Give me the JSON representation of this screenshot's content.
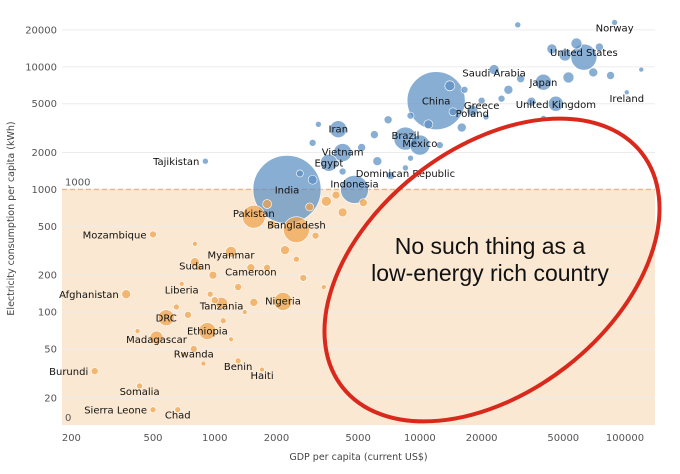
{
  "chart_data": {
    "type": "scatter",
    "xlabel": "GDP per capita (current US$)",
    "ylabel": "Electricity consumption per capita (kWh)",
    "x_scale": "log",
    "y_scale": "log",
    "xlim": [
      180,
      140000
    ],
    "ylim": [
      12,
      28000
    ],
    "x_ticks": [
      200,
      500,
      1000,
      2000,
      5000,
      10000,
      20000,
      50000,
      100000
    ],
    "x_tick_labels": [
      "200",
      "500",
      "1000",
      "2000",
      "5000",
      "10000",
      "20000",
      "50000",
      "100000"
    ],
    "y_ticks": [
      20,
      50,
      100,
      200,
      500,
      1000,
      2000,
      5000,
      10000,
      20000
    ],
    "y_tick_labels": [
      "20",
      "50",
      "100",
      "200",
      "500",
      "1000",
      "2000",
      "5000",
      "10000",
      "20000"
    ],
    "threshold": {
      "value": 1000,
      "label": "1000"
    },
    "shaded_region_label": "0",
    "colors": {
      "high": "#5b8fc4",
      "low": "#f0a24a",
      "shade": "#fbe8d2",
      "threshold_line": "#e8b48a",
      "ellipse": "#d9291c"
    },
    "annotation": {
      "line1": "No such thing as a",
      "line2": "low-energy rich country"
    },
    "points": [
      {
        "label": "Norway",
        "x": 89000,
        "y": 23000,
        "size": 6,
        "group": "high"
      },
      {
        "label": "Saudi Arabia",
        "x": 23000,
        "y": 9500,
        "size": 10,
        "group": "high"
      },
      {
        "label": "United States",
        "x": 63000,
        "y": 12000,
        "size": 26,
        "group": "high"
      },
      {
        "label": "Japan",
        "x": 40000,
        "y": 7500,
        "size": 16,
        "group": "high"
      },
      {
        "label": "Ireland",
        "x": 102000,
        "y": 6200,
        "size": 5,
        "group": "high"
      },
      {
        "label": "China",
        "x": 12000,
        "y": 5300,
        "size": 58,
        "group": "high"
      },
      {
        "label": "Greece",
        "x": 20000,
        "y": 5300,
        "size": 7,
        "group": "high"
      },
      {
        "label": "Poland",
        "x": 18000,
        "y": 4400,
        "size": 11,
        "group": "high"
      },
      {
        "label": "United Kingdom",
        "x": 46000,
        "y": 5000,
        "size": 15,
        "group": "high"
      },
      {
        "label": "Iran",
        "x": 4000,
        "y": 3100,
        "size": 17,
        "group": "high"
      },
      {
        "label": "Brazil",
        "x": 8500,
        "y": 2600,
        "size": 23,
        "group": "high"
      },
      {
        "label": "Mexico",
        "x": 10000,
        "y": 2300,
        "size": 20,
        "group": "high"
      },
      {
        "label": "Vietnam",
        "x": 4200,
        "y": 2000,
        "size": 18,
        "group": "high"
      },
      {
        "label": "Tajikistan",
        "x": 900,
        "y": 1700,
        "size": 6,
        "group": "high"
      },
      {
        "label": "Egypt",
        "x": 3600,
        "y": 1650,
        "size": 17,
        "group": "high"
      },
      {
        "label": "Dominican Republic",
        "x": 8500,
        "y": 1500,
        "size": 6,
        "group": "high"
      },
      {
        "label": "India",
        "x": 2250,
        "y": 1000,
        "size": 68,
        "group": "high"
      },
      {
        "label": "Indonesia",
        "x": 4800,
        "y": 1000,
        "size": 28,
        "group": "high"
      },
      {
        "label": "Pakistan",
        "x": 1550,
        "y": 600,
        "size": 23,
        "group": "low"
      },
      {
        "label": "Bangladesh",
        "x": 2500,
        "y": 470,
        "size": 26,
        "group": "low"
      },
      {
        "label": "Mozambique",
        "x": 500,
        "y": 430,
        "size": 7,
        "group": "low"
      },
      {
        "label": "Myanmar",
        "x": 1200,
        "y": 310,
        "size": 11,
        "group": "low"
      },
      {
        "label": "Sudan",
        "x": 800,
        "y": 255,
        "size": 9,
        "group": "low"
      },
      {
        "label": "Cameroon",
        "x": 1500,
        "y": 230,
        "size": 8,
        "group": "low"
      },
      {
        "label": "Liberia",
        "x": 690,
        "y": 170,
        "size": 5,
        "group": "low"
      },
      {
        "label": "Afghanistan",
        "x": 370,
        "y": 140,
        "size": 9,
        "group": "low"
      },
      {
        "label": "Tanzania",
        "x": 1080,
        "y": 118,
        "size": 12,
        "group": "low"
      },
      {
        "label": "Nigeria",
        "x": 2150,
        "y": 122,
        "size": 18,
        "group": "low"
      },
      {
        "label": "DRC",
        "x": 580,
        "y": 90,
        "size": 16,
        "group": "low"
      },
      {
        "label": "Ethiopia",
        "x": 920,
        "y": 70,
        "size": 17,
        "group": "low"
      },
      {
        "label": "Madagascar",
        "x": 520,
        "y": 62,
        "size": 13,
        "group": "low"
      },
      {
        "label": "Rwanda",
        "x": 790,
        "y": 50,
        "size": 7,
        "group": "low"
      },
      {
        "label": "Benin",
        "x": 1300,
        "y": 40,
        "size": 6,
        "group": "low"
      },
      {
        "label": "Haiti",
        "x": 1700,
        "y": 34,
        "size": 5,
        "group": "low"
      },
      {
        "label": "Burundi",
        "x": 260,
        "y": 33,
        "size": 7,
        "group": "low"
      },
      {
        "label": "Somalia",
        "x": 430,
        "y": 25,
        "size": 6,
        "group": "low"
      },
      {
        "label": "Sierra Leone",
        "x": 500,
        "y": 16,
        "size": 6,
        "group": "low"
      },
      {
        "label": "Chad",
        "x": 660,
        "y": 16,
        "size": 6,
        "group": "low"
      },
      {
        "label": "",
        "x": 14000,
        "y": 7000,
        "size": 10,
        "group": "high"
      },
      {
        "label": "",
        "x": 16000,
        "y": 3200,
        "size": 9,
        "group": "high"
      },
      {
        "label": "",
        "x": 27000,
        "y": 6500,
        "size": 9,
        "group": "high"
      },
      {
        "label": "",
        "x": 31000,
        "y": 8000,
        "size": 8,
        "group": "high"
      },
      {
        "label": "",
        "x": 35000,
        "y": 5200,
        "size": 9,
        "group": "high"
      },
      {
        "label": "",
        "x": 44000,
        "y": 14000,
        "size": 10,
        "group": "high"
      },
      {
        "label": "",
        "x": 51000,
        "y": 12500,
        "size": 12,
        "group": "high"
      },
      {
        "label": "",
        "x": 53000,
        "y": 8200,
        "size": 11,
        "group": "high"
      },
      {
        "label": "",
        "x": 58000,
        "y": 15500,
        "size": 11,
        "group": "high"
      },
      {
        "label": "",
        "x": 70000,
        "y": 9000,
        "size": 9,
        "group": "high"
      },
      {
        "label": "",
        "x": 75000,
        "y": 14500,
        "size": 8,
        "group": "high"
      },
      {
        "label": "",
        "x": 85000,
        "y": 8500,
        "size": 8,
        "group": "high"
      },
      {
        "label": "",
        "x": 120000,
        "y": 9500,
        "size": 5,
        "group": "high"
      },
      {
        "label": "",
        "x": 30000,
        "y": 22000,
        "size": 6,
        "group": "high"
      },
      {
        "label": "",
        "x": 25000,
        "y": 5500,
        "size": 7,
        "group": "high"
      },
      {
        "label": "",
        "x": 14500,
        "y": 4300,
        "size": 8,
        "group": "high"
      },
      {
        "label": "",
        "x": 11000,
        "y": 3400,
        "size": 9,
        "group": "high"
      },
      {
        "label": "",
        "x": 7000,
        "y": 3700,
        "size": 8,
        "group": "high"
      },
      {
        "label": "",
        "x": 6000,
        "y": 2800,
        "size": 8,
        "group": "high"
      },
      {
        "label": "",
        "x": 9000,
        "y": 4000,
        "size": 7,
        "group": "high"
      },
      {
        "label": "",
        "x": 12500,
        "y": 2300,
        "size": 7,
        "group": "high"
      },
      {
        "label": "",
        "x": 3200,
        "y": 3400,
        "size": 6,
        "group": "high"
      },
      {
        "label": "",
        "x": 3000,
        "y": 2400,
        "size": 7,
        "group": "high"
      },
      {
        "label": "",
        "x": 5200,
        "y": 2200,
        "size": 8,
        "group": "high"
      },
      {
        "label": "",
        "x": 6200,
        "y": 1700,
        "size": 9,
        "group": "high"
      },
      {
        "label": "",
        "x": 7200,
        "y": 1300,
        "size": 8,
        "group": "high"
      },
      {
        "label": "",
        "x": 4200,
        "y": 1400,
        "size": 7,
        "group": "high"
      },
      {
        "label": "",
        "x": 3000,
        "y": 1200,
        "size": 9,
        "group": "high"
      },
      {
        "label": "",
        "x": 2600,
        "y": 1350,
        "size": 7,
        "group": "high"
      },
      {
        "label": "",
        "x": 9000,
        "y": 1800,
        "size": 6,
        "group": "high"
      },
      {
        "label": "",
        "x": 40000,
        "y": 3800,
        "size": 6,
        "group": "high"
      },
      {
        "label": "",
        "x": 16500,
        "y": 6500,
        "size": 7,
        "group": "high"
      },
      {
        "label": "",
        "x": 21000,
        "y": 3900,
        "size": 6,
        "group": "high"
      },
      {
        "label": "",
        "x": 3500,
        "y": 800,
        "size": 10,
        "group": "low"
      },
      {
        "label": "",
        "x": 4200,
        "y": 650,
        "size": 9,
        "group": "low"
      },
      {
        "label": "",
        "x": 3900,
        "y": 900,
        "size": 8,
        "group": "low"
      },
      {
        "label": "",
        "x": 5300,
        "y": 780,
        "size": 8,
        "group": "low"
      },
      {
        "label": "",
        "x": 2900,
        "y": 720,
        "size": 8,
        "group": "low"
      },
      {
        "label": "",
        "x": 1800,
        "y": 760,
        "size": 9,
        "group": "low"
      },
      {
        "label": "",
        "x": 1900,
        "y": 520,
        "size": 8,
        "group": "low"
      },
      {
        "label": "",
        "x": 3100,
        "y": 420,
        "size": 7,
        "group": "low"
      },
      {
        "label": "",
        "x": 2200,
        "y": 320,
        "size": 9,
        "group": "low"
      },
      {
        "label": "",
        "x": 1800,
        "y": 230,
        "size": 7,
        "group": "low"
      },
      {
        "label": "",
        "x": 2700,
        "y": 190,
        "size": 7,
        "group": "low"
      },
      {
        "label": "",
        "x": 3400,
        "y": 160,
        "size": 5,
        "group": "low"
      },
      {
        "label": "",
        "x": 1300,
        "y": 160,
        "size": 7,
        "group": "low"
      },
      {
        "label": "",
        "x": 1000,
        "y": 125,
        "size": 7,
        "group": "low"
      },
      {
        "label": "",
        "x": 1550,
        "y": 120,
        "size": 8,
        "group": "low"
      },
      {
        "label": "",
        "x": 980,
        "y": 200,
        "size": 8,
        "group": "low"
      },
      {
        "label": "",
        "x": 840,
        "y": 230,
        "size": 6,
        "group": "low"
      },
      {
        "label": "",
        "x": 740,
        "y": 95,
        "size": 7,
        "group": "low"
      },
      {
        "label": "",
        "x": 650,
        "y": 110,
        "size": 6,
        "group": "low"
      },
      {
        "label": "",
        "x": 1100,
        "y": 85,
        "size": 6,
        "group": "low"
      },
      {
        "label": "",
        "x": 880,
        "y": 38,
        "size": 5,
        "group": "low"
      },
      {
        "label": "",
        "x": 1200,
        "y": 60,
        "size": 5,
        "group": "low"
      },
      {
        "label": "",
        "x": 700,
        "y": 45,
        "size": 5,
        "group": "low"
      },
      {
        "label": "",
        "x": 420,
        "y": 70,
        "size": 5,
        "group": "low"
      },
      {
        "label": "",
        "x": 1400,
        "y": 100,
        "size": 5,
        "group": "low"
      },
      {
        "label": "",
        "x": 2500,
        "y": 270,
        "size": 6,
        "group": "low"
      },
      {
        "label": "",
        "x": 800,
        "y": 360,
        "size": 5,
        "group": "low"
      },
      {
        "label": "",
        "x": 950,
        "y": 140,
        "size": 6,
        "group": "low"
      }
    ]
  }
}
